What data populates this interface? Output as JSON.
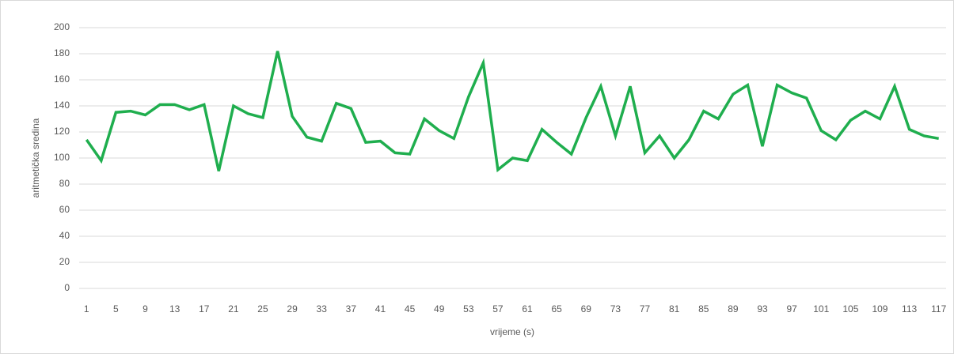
{
  "chart_data": {
    "type": "line",
    "x_label": "vrijeme (s)",
    "y_label": "aritmetička sredina",
    "categories": [
      1,
      null,
      5,
      null,
      9,
      null,
      13,
      null,
      17,
      null,
      21,
      null,
      25,
      null,
      29,
      null,
      33,
      null,
      37,
      null,
      41,
      null,
      45,
      null,
      49,
      null,
      53,
      null,
      57,
      null,
      61,
      null,
      65,
      null,
      69,
      null,
      73,
      null,
      77,
      null,
      81,
      null,
      85,
      null,
      89,
      null,
      93,
      null,
      97,
      null,
      101,
      null,
      105,
      null,
      109,
      null,
      113,
      null,
      117
    ],
    "values": [
      114,
      98,
      135,
      136,
      133,
      141,
      141,
      137,
      141,
      90,
      140,
      134,
      131,
      182,
      132,
      116,
      113,
      142,
      138,
      112,
      113,
      104,
      103,
      130,
      121,
      115,
      147,
      173,
      91,
      100,
      98,
      122,
      112,
      103,
      131,
      155,
      117,
      155,
      104,
      117,
      100,
      114,
      136,
      130,
      149,
      156,
      109,
      156,
      150,
      146,
      121,
      114,
      129,
      136,
      130,
      155,
      122,
      117,
      115
    ],
    "color": "#1fae4e",
    "ylim": [
      0,
      200
    ],
    "yticks": [
      0,
      20,
      40,
      60,
      80,
      100,
      120,
      140,
      160,
      180,
      200
    ],
    "grid": true
  }
}
